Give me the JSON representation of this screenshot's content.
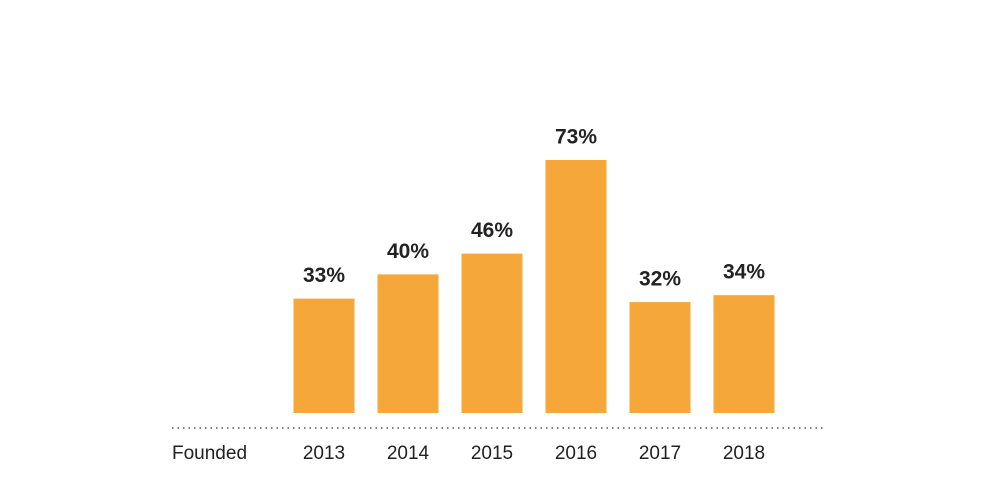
{
  "chart_data": {
    "type": "bar",
    "x_label": "Founded",
    "categories": [
      "2013",
      "2014",
      "2015",
      "2016",
      "2017",
      "2018"
    ],
    "values": [
      33,
      40,
      46,
      73,
      32,
      34
    ],
    "value_labels": [
      "33%",
      "40%",
      "46%",
      "73%",
      "32%",
      "34%"
    ],
    "color": "#f6a73a"
  }
}
